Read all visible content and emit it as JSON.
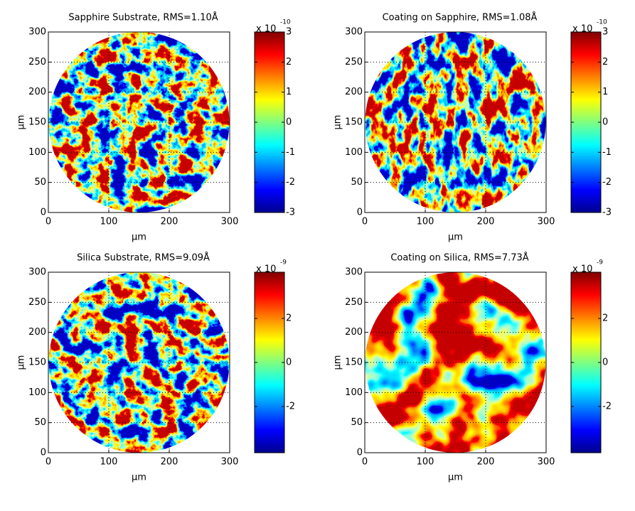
{
  "chart_data": [
    {
      "type": "heatmap",
      "title": "Sapphire Substrate, RMS=1.10Å",
      "xlabel": "μm",
      "ylabel": "μm",
      "xlim": [
        0,
        300
      ],
      "ylim": [
        0,
        300
      ],
      "xticks": [
        0,
        100,
        200,
        300
      ],
      "yticks": [
        0,
        50,
        100,
        150,
        200,
        250,
        300
      ],
      "grid": true,
      "colorbar": {
        "lim": [
          -3,
          3
        ],
        "ticks": [
          -3,
          -2,
          -1,
          0,
          1,
          2,
          3
        ],
        "multiplier": "x 10",
        "exponent": "-10"
      }
    },
    {
      "type": "heatmap",
      "title": "Coating on Sapphire, RMS=1.08Å",
      "xlabel": "μm",
      "ylabel": "μm",
      "xlim": [
        0,
        300
      ],
      "ylim": [
        0,
        300
      ],
      "xticks": [
        0,
        100,
        200,
        300
      ],
      "yticks": [
        0,
        50,
        100,
        150,
        200,
        250,
        300
      ],
      "grid": true,
      "colorbar": {
        "lim": [
          -3,
          3
        ],
        "ticks": [
          -3,
          -2,
          -1,
          0,
          1,
          2,
          3
        ],
        "multiplier": "x 10",
        "exponent": "-10"
      }
    },
    {
      "type": "heatmap",
      "title": "Silica Substrate, RMS=9.09Å",
      "xlabel": "μm",
      "ylabel": "μm",
      "xlim": [
        0,
        300
      ],
      "ylim": [
        0,
        300
      ],
      "xticks": [
        0,
        100,
        200,
        300
      ],
      "yticks": [
        0,
        50,
        100,
        150,
        200,
        250,
        300
      ],
      "grid": true,
      "colorbar": {
        "lim": [
          -4.1,
          4.1
        ],
        "ticks": [
          -2,
          0,
          2
        ],
        "multiplier": "x 10",
        "exponent": "-9"
      }
    },
    {
      "type": "heatmap",
      "title": "Coating on Silica, RMS=7.73Å",
      "xlabel": "μm",
      "ylabel": "μm",
      "xlim": [
        0,
        300
      ],
      "ylim": [
        0,
        300
      ],
      "xticks": [
        0,
        100,
        200,
        300
      ],
      "yticks": [
        0,
        50,
        100,
        150,
        200,
        250,
        300
      ],
      "grid": true,
      "colorbar": {
        "lim": [
          -4.1,
          4.1
        ],
        "ticks": [
          -2,
          0,
          2
        ],
        "multiplier": "x 10",
        "exponent": "-9"
      }
    }
  ]
}
